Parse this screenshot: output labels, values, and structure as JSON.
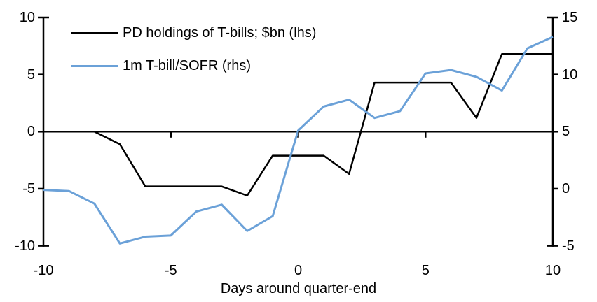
{
  "chart_data": {
    "type": "line",
    "xlabel": "Days around quarter-end",
    "grid": "off",
    "legend_position": "top-left",
    "x": [
      -10,
      -9,
      -8,
      -7,
      -6,
      -5,
      -4,
      -3,
      -2,
      -1,
      0,
      1,
      2,
      3,
      4,
      5,
      6,
      7,
      8,
      9,
      10
    ],
    "series": [
      {
        "name": "PD holdings of T-bills; $bn (lhs)",
        "axis": "left",
        "color": "#000000",
        "values": [
          0,
          0,
          0,
          -1.1,
          -4.8,
          -4.8,
          -4.8,
          -4.8,
          -5.6,
          -2.1,
          -2.1,
          -2.1,
          -3.7,
          4.3,
          4.3,
          4.3,
          4.3,
          1.2,
          6.8,
          6.8,
          6.8
        ]
      },
      {
        "name": "1m T-bill/SOFR (rhs)",
        "axis": "right",
        "color": "#6BA1D8",
        "values": [
          -0.1,
          -0.2,
          -1.3,
          -4.8,
          -4.2,
          -4.1,
          -2.0,
          -1.4,
          -3.7,
          -2.4,
          5.1,
          7.2,
          7.8,
          6.2,
          6.8,
          10.1,
          10.4,
          9.8,
          8.6,
          12.3,
          13.3
        ]
      }
    ],
    "left_axis": {
      "ticks": [
        10,
        5,
        0,
        -5,
        -10
      ],
      "range": [
        -10,
        10
      ]
    },
    "right_axis": {
      "ticks": [
        15,
        10,
        5,
        0,
        -5
      ],
      "range": [
        -5,
        15
      ]
    },
    "x_axis": {
      "ticks": [
        -10,
        -5,
        0,
        5,
        10
      ],
      "range": [
        -10,
        10
      ]
    },
    "axis_color": "#000000"
  }
}
